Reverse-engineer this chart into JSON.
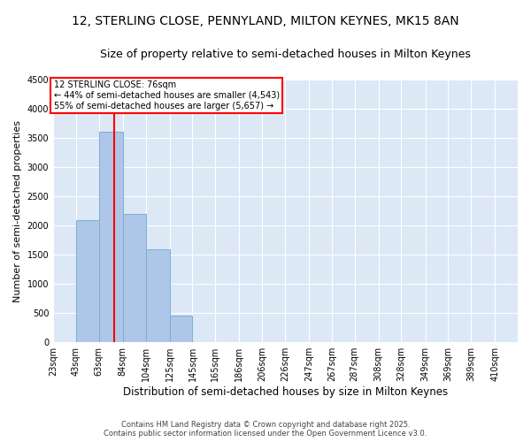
{
  "title": "12, STERLING CLOSE, PENNYLAND, MILTON KEYNES, MK15 8AN",
  "subtitle": "Size of property relative to semi-detached houses in Milton Keynes",
  "xlabel": "Distribution of semi-detached houses by size in Milton Keynes",
  "ylabel": "Number of semi-detached properties",
  "bins": [
    23,
    43,
    63,
    84,
    104,
    125,
    145,
    165,
    186,
    206,
    226,
    247,
    267,
    287,
    308,
    328,
    349,
    369,
    389,
    410,
    430
  ],
  "counts": [
    0,
    2100,
    3600,
    2200,
    1600,
    450,
    0,
    0,
    0,
    0,
    0,
    0,
    0,
    0,
    0,
    0,
    0,
    0,
    0,
    0
  ],
  "bar_color": "#aec6e8",
  "bar_edgecolor": "#7aafd4",
  "vline_x": 76,
  "vline_color": "red",
  "annotation_title": "12 STERLING CLOSE: 76sqm",
  "annotation_line1": "← 44% of semi-detached houses are smaller (4,543)",
  "annotation_line2": "55% of semi-detached houses are larger (5,657) →",
  "annotation_box_color": "red",
  "ylim": [
    0,
    4500
  ],
  "yticks": [
    0,
    500,
    1000,
    1500,
    2000,
    2500,
    3000,
    3500,
    4000,
    4500
  ],
  "background_color": "#dce8f5",
  "footer_line1": "Contains HM Land Registry data © Crown copyright and database right 2025.",
  "footer_line2": "Contains public sector information licensed under the Open Government Licence v3.0.",
  "title_fontsize": 10,
  "subtitle_fontsize": 9,
  "tick_label_fontsize": 7,
  "ylabel_fontsize": 8,
  "xlabel_fontsize": 8.5,
  "footer_fontsize": 6
}
